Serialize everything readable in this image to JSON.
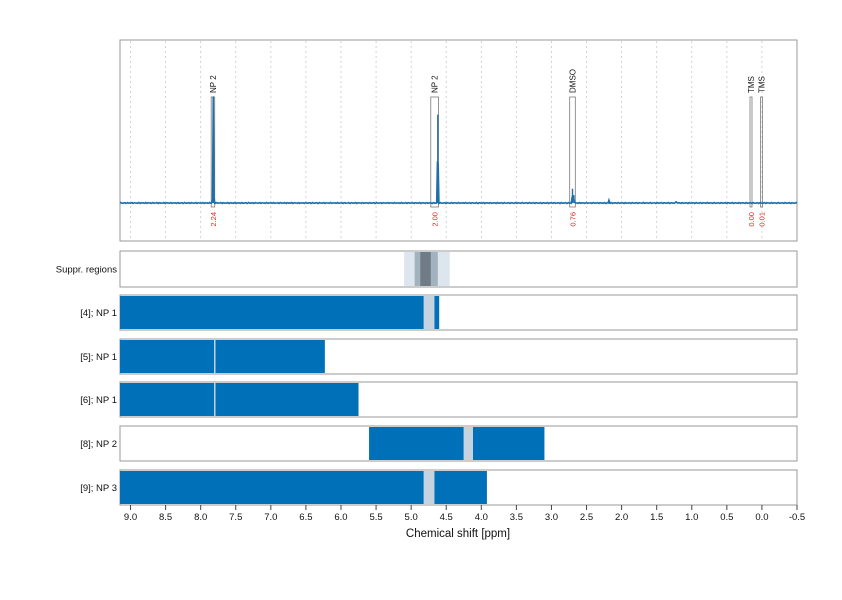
{
  "chart_data": {
    "type": "nmr-spectrum",
    "xlabel": "Chemical shift [ppm]",
    "xlim": [
      9.15,
      -0.5
    ],
    "x_ticks": [
      {
        "v": 9.0,
        "label": "9.0"
      },
      {
        "v": 8.5,
        "label": "8.5"
      },
      {
        "v": 8.0,
        "label": "8.0"
      },
      {
        "v": 7.5,
        "label": "7.5"
      },
      {
        "v": 7.0,
        "label": "7.0"
      },
      {
        "v": 6.5,
        "label": "6.5"
      },
      {
        "v": 6.0,
        "label": "6.0"
      },
      {
        "v": 5.5,
        "label": "5.5"
      },
      {
        "v": 5.0,
        "label": "5.0"
      },
      {
        "v": 4.5,
        "label": "4.5"
      },
      {
        "v": 4.0,
        "label": "4.0"
      },
      {
        "v": 3.5,
        "label": "3.5"
      },
      {
        "v": 3.0,
        "label": "3.0"
      },
      {
        "v": 2.5,
        "label": "2.5"
      },
      {
        "v": 2.0,
        "label": "2.0"
      },
      {
        "v": 1.5,
        "label": "1.5"
      },
      {
        "v": 1.0,
        "label": "1.0"
      },
      {
        "v": 0.5,
        "label": "0.5"
      },
      {
        "v": 0.0,
        "label": "0.0"
      },
      {
        "v": -0.5,
        "label": "-0.5"
      }
    ],
    "grid": true,
    "spectrum_color": "#1f6fa8",
    "peaks": [
      {
        "x": 7.82,
        "h": 0.82
      },
      {
        "x": 4.62,
        "h": 0.68
      },
      {
        "x": 2.7,
        "h": 0.11
      },
      {
        "x": 2.68,
        "h": 0.06
      },
      {
        "x": 2.18,
        "h": 0.02
      },
      {
        "x": 1.22,
        "h": 0.015
      }
    ],
    "peak_boxes": [
      {
        "x1": 7.85,
        "x2": 7.8,
        "label": "NP 2",
        "integral": "2.24"
      },
      {
        "x1": 4.72,
        "x2": 4.61,
        "label": "NP 2",
        "integral": "2.00"
      },
      {
        "x1": 2.74,
        "x2": 2.66,
        "label": "DMSO",
        "integral": "0.76"
      },
      {
        "x1": 0.17,
        "x2": 0.15,
        "label": "TMS",
        "integral": "0.00"
      },
      {
        "x1": 0.02,
        "x2": 0.0,
        "label": "TMS",
        "integral": "0.01"
      }
    ],
    "suppression": {
      "label": "Suppr. regions",
      "outer": [
        5.1,
        4.45
      ],
      "mid": [
        4.95,
        4.62
      ],
      "inner": [
        4.87,
        4.72
      ]
    },
    "rows": [
      {
        "label": "[4]; NP 1",
        "bars": [
          [
            9.15,
            4.82
          ],
          [
            4.67,
            4.6
          ]
        ],
        "gaps": [
          [
            4.82,
            4.67
          ]
        ]
      },
      {
        "label": "[5]; NP 1",
        "bars": [
          [
            9.15,
            6.23
          ]
        ],
        "gaps": [
          [
            7.81,
            7.79
          ]
        ]
      },
      {
        "label": "[6]; NP 1",
        "bars": [
          [
            9.15,
            5.75
          ]
        ],
        "gaps": [
          [
            7.81,
            7.79
          ]
        ]
      },
      {
        "label": "[8]; NP 2",
        "bars": [
          [
            5.6,
            4.25
          ],
          [
            4.12,
            3.1
          ]
        ],
        "gaps": [
          [
            4.25,
            4.12
          ]
        ]
      },
      {
        "label": "[9]; NP 3",
        "bars": [
          [
            9.15,
            4.82
          ],
          [
            4.67,
            3.92
          ]
        ],
        "gaps": [
          [
            4.82,
            4.67
          ]
        ]
      }
    ],
    "bar_color": "#0070b8",
    "gap_color": "#c4d3df"
  }
}
